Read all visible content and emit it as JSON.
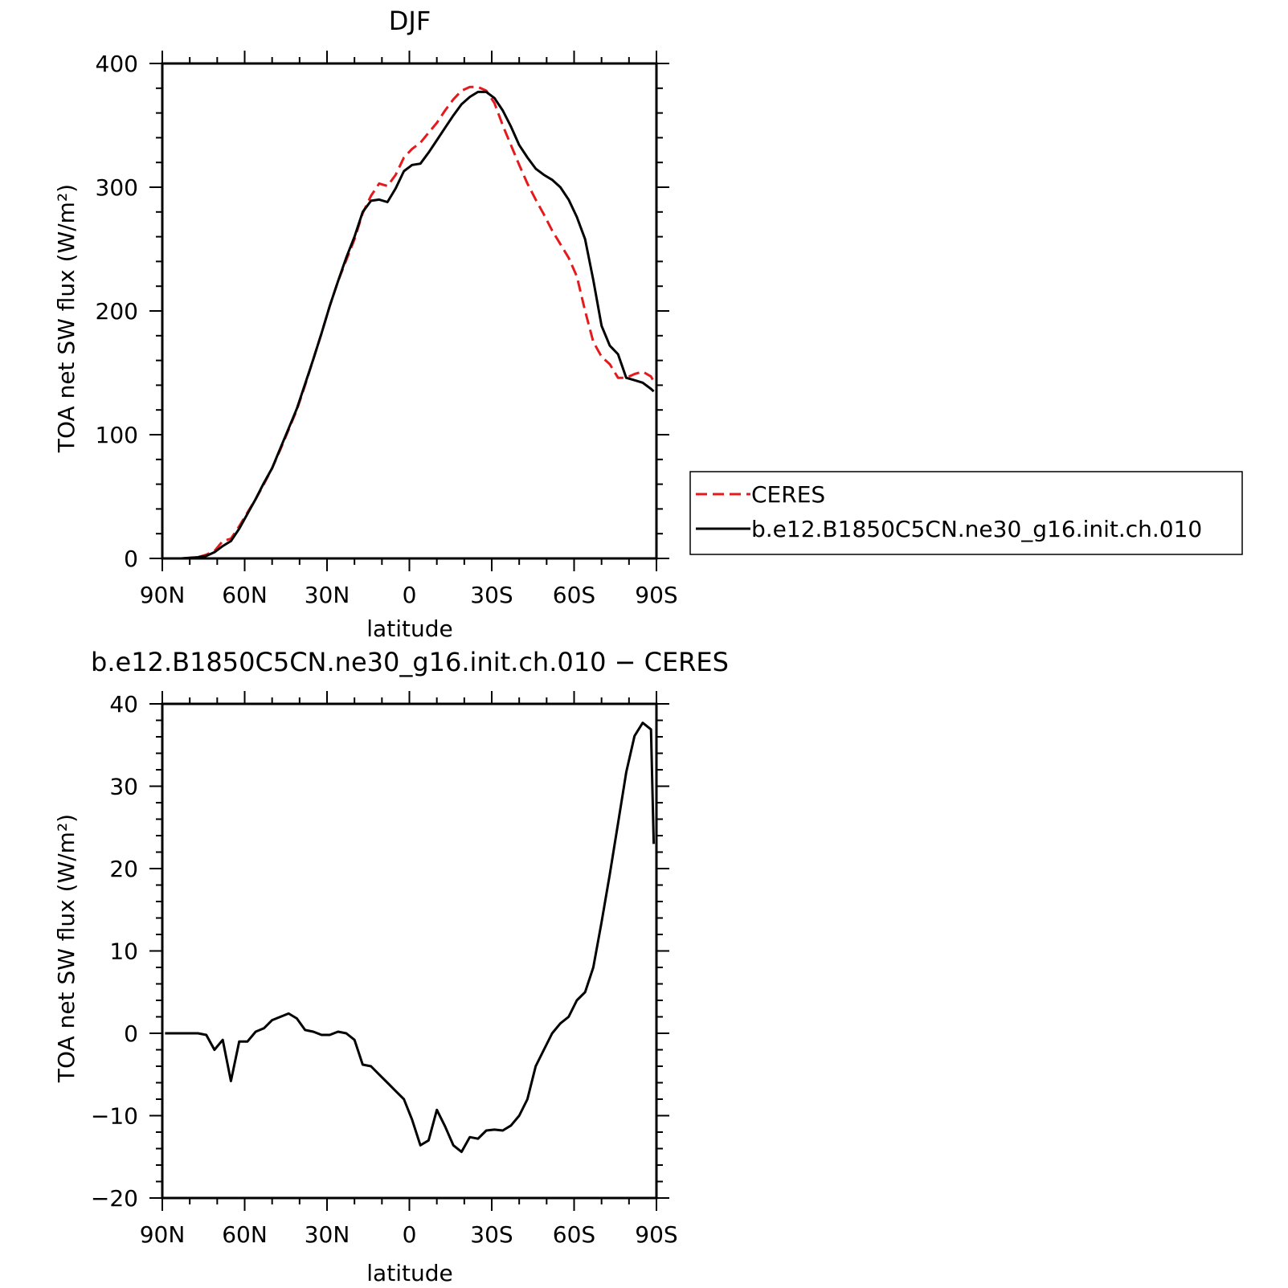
{
  "figure": {
    "background": "#ffffff"
  },
  "chart_data": [
    {
      "type": "line",
      "title": "DJF",
      "xlabel": "latitude",
      "ylabel": "TOA net SW flux (W/m²)",
      "xlim": [
        90,
        -90
      ],
      "ylim": [
        0,
        400
      ],
      "x_ticks": [
        90,
        60,
        30,
        0,
        -30,
        -60,
        -90
      ],
      "x_tick_labels": [
        "90N",
        "60N",
        "30N",
        "0",
        "30S",
        "60S",
        "90S"
      ],
      "y_ticks": [
        0,
        100,
        200,
        300,
        400
      ],
      "y_tick_labels": [
        "0",
        "100",
        "200",
        "300",
        "400"
      ],
      "grid": false,
      "legend": {
        "placement": "right, outside plot",
        "entries": [
          "CERES",
          "b.e12.B1850C5CN.ne30_g16.init.ch.010"
        ]
      },
      "series": [
        {
          "name": "CERES",
          "color": "#e41a1c",
          "dash": "dashed",
          "x": [
            89,
            86,
            83,
            80,
            77,
            74,
            71,
            68,
            65,
            62,
            59,
            56,
            53,
            50,
            47,
            44,
            41,
            38,
            35,
            32,
            29,
            26,
            23,
            20,
            17,
            14,
            11,
            8,
            5,
            2,
            -1,
            -4,
            -7,
            -10,
            -13,
            -16,
            -19,
            -22,
            -25,
            -28,
            -31,
            -34,
            -37,
            -40,
            -43,
            -46,
            -49,
            -52,
            -55,
            -58,
            -61,
            -64,
            -67,
            -70,
            -73,
            -76,
            -79,
            -82,
            -85,
            -88,
            -89
          ],
          "values": [
            0,
            0,
            0,
            0.5,
            1,
            3,
            6,
            14,
            16,
            26,
            37,
            48,
            60,
            73,
            88,
            104,
            120,
            140,
            161,
            182,
            204,
            224,
            241,
            258,
            279,
            293,
            303,
            301,
            310,
            324,
            331,
            336,
            344,
            352,
            362,
            371,
            378,
            381,
            381,
            378,
            368,
            350,
            334,
            318,
            303,
            290,
            278,
            265,
            254,
            243,
            228,
            200,
            175,
            163,
            157,
            146,
            146,
            149,
            151,
            147,
            143
          ]
        },
        {
          "name": "b.e12.B1850C5CN.ne30_g16.init.ch.010",
          "color": "#000000",
          "dash": "solid",
          "x": [
            89,
            86,
            83,
            80,
            77,
            74,
            71,
            68,
            65,
            62,
            59,
            56,
            53,
            50,
            47,
            44,
            41,
            38,
            35,
            32,
            29,
            26,
            23,
            20,
            17,
            14,
            11,
            8,
            5,
            2,
            -1,
            -4,
            -7,
            -10,
            -13,
            -16,
            -19,
            -22,
            -25,
            -28,
            -31,
            -34,
            -37,
            -40,
            -43,
            -46,
            -49,
            -52,
            -55,
            -58,
            -61,
            -64,
            -67,
            -70,
            -73,
            -76,
            -79,
            -82,
            -85,
            -88,
            -89
          ],
          "values": [
            0,
            0,
            0,
            0.5,
            1,
            2,
            5,
            10,
            14,
            24,
            36,
            48,
            61,
            73,
            89,
            105,
            121,
            141,
            161,
            182,
            204,
            224,
            243,
            260,
            280,
            289,
            290,
            288,
            299,
            313,
            318,
            319,
            328,
            338,
            348,
            358,
            367,
            373,
            377,
            377,
            372,
            362,
            349,
            334,
            324,
            315,
            310,
            306,
            300,
            290,
            276,
            258,
            225,
            188,
            172,
            165,
            146,
            144,
            142,
            137,
            135
          ]
        }
      ]
    },
    {
      "type": "line",
      "title": "b.e12.B1850C5CN.ne30_g16.init.ch.010 − CERES",
      "xlabel": "latitude",
      "ylabel": "TOA net SW flux (W/m²)",
      "xlim": [
        90,
        -90
      ],
      "ylim": [
        -20,
        40
      ],
      "x_ticks": [
        90,
        60,
        30,
        0,
        -30,
        -60,
        -90
      ],
      "x_tick_labels": [
        "90N",
        "60N",
        "30N",
        "0",
        "30S",
        "60S",
        "90S"
      ],
      "y_ticks": [
        -20,
        -10,
        0,
        10,
        20,
        30,
        40
      ],
      "y_tick_labels": [
        "−20",
        "−10",
        "0",
        "10",
        "20",
        "30",
        "40"
      ],
      "grid": false,
      "series": [
        {
          "color": "#000000",
          "dash": "solid",
          "x": [
            89,
            86,
            83,
            80,
            77,
            74,
            71,
            68,
            65,
            62,
            59,
            56,
            53,
            50,
            47,
            44,
            41,
            38,
            35,
            32,
            29,
            26,
            23,
            20,
            17,
            14,
            11,
            8,
            5,
            2,
            -1,
            -4,
            -7,
            -10,
            -13,
            -16,
            -19,
            -22,
            -25,
            -28,
            -31,
            -34,
            -37,
            -40,
            -43,
            -46,
            -49,
            -52,
            -55,
            -58,
            -61,
            -64,
            -67,
            -70,
            -73,
            -76,
            -79,
            -82,
            -85,
            -88,
            -89
          ],
          "values": [
            0,
            0,
            0,
            0,
            0,
            -0.2,
            -2,
            -0.8,
            -5.8,
            -1,
            -1,
            0.2,
            0.6,
            1.6,
            2,
            2.4,
            1.8,
            0.4,
            0.2,
            -0.2,
            -0.2,
            0.2,
            0,
            -0.8,
            -3.8,
            -4,
            -5,
            -6,
            -7,
            -8,
            -10.5,
            -13.6,
            -13,
            -9.3,
            -11.3,
            -13.6,
            -14.4,
            -12.6,
            -12.8,
            -11.8,
            -11.7,
            -11.8,
            -11.2,
            -10,
            -8,
            -4,
            -2,
            0,
            1.2,
            2,
            4,
            5,
            8,
            13.5,
            19.3,
            25.5,
            31.7,
            36.1,
            37.7,
            36.9,
            23
          ]
        }
      ]
    }
  ]
}
